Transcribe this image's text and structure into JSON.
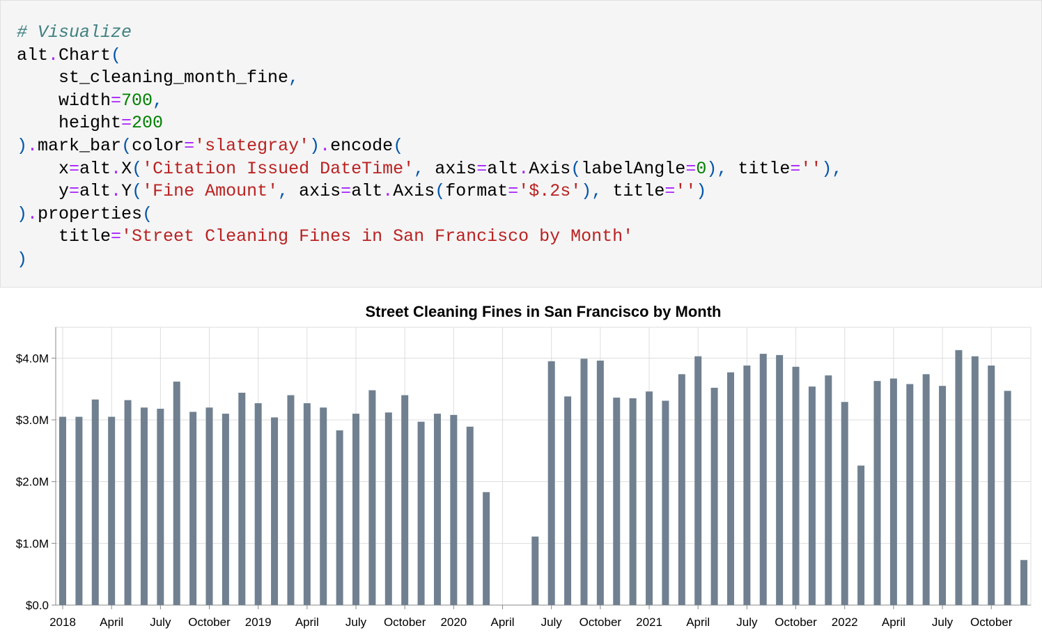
{
  "code": {
    "lines": [
      "# Visualize",
      "alt.Chart(",
      "    st_cleaning_month_fine,",
      "    width=700,",
      "    height=200",
      ").mark_bar(color='slategray').encode(",
      "    x=alt.X('Citation Issued DateTime', axis=alt.Axis(labelAngle=0), title=''),",
      "    y=alt.Y('Fine Amount', axis=alt.Axis(format='$.2s'), title='')",
      ").properties(",
      "    title='Street Cleaning Fines in San Francisco by Month'",
      ")"
    ]
  },
  "chart_data": {
    "type": "bar",
    "title": "Street Cleaning Fines in San Francisco by Month",
    "color": "#708090",
    "grid": true,
    "x": [
      "2018-01",
      "2018-02",
      "2018-03",
      "2018-04",
      "2018-05",
      "2018-06",
      "2018-07",
      "2018-08",
      "2018-09",
      "2018-10",
      "2018-11",
      "2018-12",
      "2019-01",
      "2019-02",
      "2019-03",
      "2019-04",
      "2019-05",
      "2019-06",
      "2019-07",
      "2019-08",
      "2019-09",
      "2019-10",
      "2019-11",
      "2019-12",
      "2020-01",
      "2020-02",
      "2020-03",
      "2020-04",
      "2020-05",
      "2020-06",
      "2020-07",
      "2020-08",
      "2020-09",
      "2020-10",
      "2020-11",
      "2020-12",
      "2021-01",
      "2021-02",
      "2021-03",
      "2021-04",
      "2021-05",
      "2021-06",
      "2021-07",
      "2021-08",
      "2021-09",
      "2021-10",
      "2021-11",
      "2021-12",
      "2022-01",
      "2022-02",
      "2022-03",
      "2022-04",
      "2022-05",
      "2022-06",
      "2022-07",
      "2022-08",
      "2022-09",
      "2022-10",
      "2022-11",
      "2022-12"
    ],
    "values": [
      3050000,
      3050000,
      3330000,
      3050000,
      3320000,
      3200000,
      3180000,
      3620000,
      3130000,
      3200000,
      3100000,
      3440000,
      3270000,
      3040000,
      3400000,
      3270000,
      3200000,
      2830000,
      3100000,
      3480000,
      3120000,
      3400000,
      2970000,
      3100000,
      3080000,
      2890000,
      1830000,
      null,
      null,
      1110000,
      3950000,
      3380000,
      3990000,
      3960000,
      3360000,
      3350000,
      3460000,
      3310000,
      3740000,
      4030000,
      3520000,
      3770000,
      3880000,
      4070000,
      4050000,
      3860000,
      3540000,
      3720000,
      3290000,
      2260000,
      3630000,
      3670000,
      3580000,
      3740000,
      3550000,
      4130000,
      4030000,
      3880000,
      3470000,
      730000
    ],
    "xlim": [
      "2018-01",
      "2022-12"
    ],
    "xticks": [
      {
        "value": "2018-01",
        "label": "2018"
      },
      {
        "value": "2018-04",
        "label": "April"
      },
      {
        "value": "2018-07",
        "label": "July"
      },
      {
        "value": "2018-10",
        "label": "October"
      },
      {
        "value": "2019-01",
        "label": "2019"
      },
      {
        "value": "2019-04",
        "label": "April"
      },
      {
        "value": "2019-07",
        "label": "July"
      },
      {
        "value": "2019-10",
        "label": "October"
      },
      {
        "value": "2020-01",
        "label": "2020"
      },
      {
        "value": "2020-04",
        "label": "April"
      },
      {
        "value": "2020-07",
        "label": "July"
      },
      {
        "value": "2020-10",
        "label": "October"
      },
      {
        "value": "2021-01",
        "label": "2021"
      },
      {
        "value": "2021-04",
        "label": "April"
      },
      {
        "value": "2021-07",
        "label": "July"
      },
      {
        "value": "2021-10",
        "label": "October"
      },
      {
        "value": "2022-01",
        "label": "2022"
      },
      {
        "value": "2022-04",
        "label": "April"
      },
      {
        "value": "2022-07",
        "label": "July"
      },
      {
        "value": "2022-10",
        "label": "October"
      }
    ],
    "ylim": [
      0,
      4500000
    ],
    "yticks": [
      {
        "value": 0,
        "label": "$0.0"
      },
      {
        "value": 1000000,
        "label": "$1.0M"
      },
      {
        "value": 2000000,
        "label": "$2.0M"
      },
      {
        "value": 3000000,
        "label": "$3.0M"
      },
      {
        "value": 4000000,
        "label": "$4.0M"
      }
    ]
  }
}
